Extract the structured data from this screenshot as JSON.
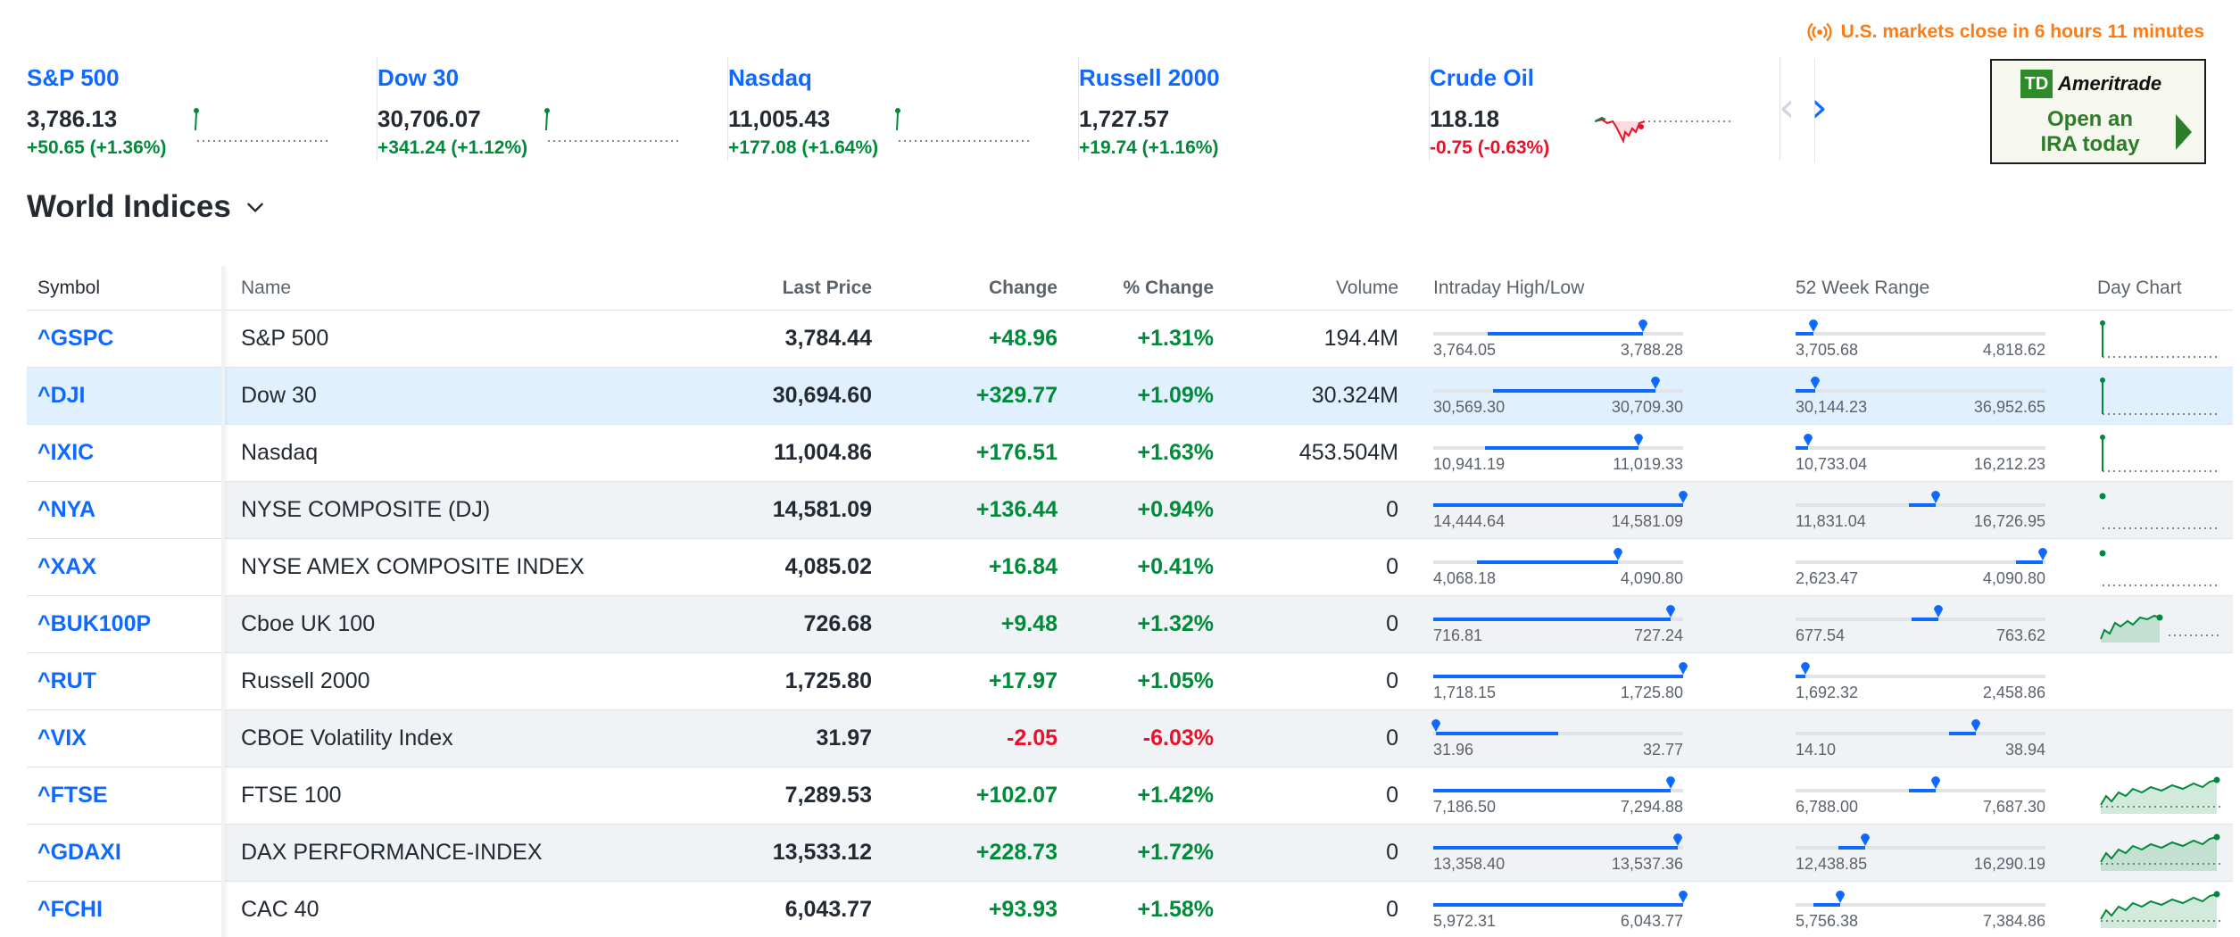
{
  "market_status": "U.S. markets close in 6 hours 11 minutes",
  "tickers": [
    {
      "name": "S&P 500",
      "price": "3,786.13",
      "change": "+50.65 (+1.36%)",
      "trend": "pos"
    },
    {
      "name": "Dow 30",
      "price": "30,706.07",
      "change": "+341.24 (+1.12%)",
      "trend": "pos"
    },
    {
      "name": "Nasdaq",
      "price": "11,005.43",
      "change": "+177.08 (+1.64%)",
      "trend": "pos"
    },
    {
      "name": "Russell 2000",
      "price": "1,727.57",
      "change": "+19.74 (+1.16%)",
      "trend": "pos"
    },
    {
      "name": "Crude Oil",
      "price": "118.18",
      "change": "-0.75 (-0.63%)",
      "trend": "neg"
    }
  ],
  "ad": {
    "brand": "Ameritrade",
    "logo": "TD",
    "text_line1": "Open an",
    "text_line2": "IRA today"
  },
  "section_title": "World Indices",
  "table": {
    "headers": {
      "symbol": "Symbol",
      "name": "Name",
      "last": "Last Price",
      "change": "Change",
      "pct": "% Change",
      "volume": "Volume",
      "intraday": "Intraday High/Low",
      "week52": "52 Week Range",
      "day": "Day Chart"
    },
    "rows": [
      {
        "symbol": "^GSPC",
        "name": "S&P 500",
        "last": "3,784.44",
        "change": "+48.96",
        "pct": "+1.31%",
        "volume": "194.4M",
        "intra_lo": "3,764.05",
        "intra_hi": "3,788.28",
        "w52_lo": "3,705.68",
        "w52_hi": "4,818.62",
        "intra_pos": 0.84,
        "w52_pos": 0.07,
        "trend": "pos",
        "day_style": "pin"
      },
      {
        "symbol": "^DJI",
        "name": "Dow 30",
        "last": "30,694.60",
        "change": "+329.77",
        "pct": "+1.09%",
        "volume": "30.324M",
        "intra_lo": "30,569.30",
        "intra_hi": "30,709.30",
        "w52_lo": "30,144.23",
        "w52_hi": "36,952.65",
        "intra_pos": 0.89,
        "w52_pos": 0.08,
        "trend": "pos",
        "day_style": "pin"
      },
      {
        "symbol": "^IXIC",
        "name": "Nasdaq",
        "last": "11,004.86",
        "change": "+176.51",
        "pct": "+1.63%",
        "volume": "453.504M",
        "intra_lo": "10,941.19",
        "intra_hi": "11,019.33",
        "w52_lo": "10,733.04",
        "w52_hi": "16,212.23",
        "intra_pos": 0.82,
        "w52_pos": 0.05,
        "trend": "pos",
        "day_style": "pin"
      },
      {
        "symbol": "^NYA",
        "name": "NYSE COMPOSITE (DJ)",
        "last": "14,581.09",
        "change": "+136.44",
        "pct": "+0.94%",
        "volume": "0",
        "intra_lo": "14,444.64",
        "intra_hi": "14,581.09",
        "w52_lo": "11,831.04",
        "w52_hi": "16,726.95",
        "intra_pos": 1.0,
        "w52_pos": 0.56,
        "trend": "pos",
        "day_style": "dot"
      },
      {
        "symbol": "^XAX",
        "name": "NYSE AMEX COMPOSITE INDEX",
        "last": "4,085.02",
        "change": "+16.84",
        "pct": "+0.41%",
        "volume": "0",
        "intra_lo": "4,068.18",
        "intra_hi": "4,090.80",
        "w52_lo": "2,623.47",
        "w52_hi": "4,090.80",
        "intra_pos": 0.74,
        "w52_pos": 0.99,
        "trend": "pos",
        "day_style": "dot"
      },
      {
        "symbol": "^BUK100P",
        "name": "Cboe UK 100",
        "last": "726.68",
        "change": "+9.48",
        "pct": "+1.32%",
        "volume": "0",
        "intra_lo": "716.81",
        "intra_hi": "727.24",
        "w52_lo": "677.54",
        "w52_hi": "763.62",
        "intra_pos": 0.95,
        "w52_pos": 0.57,
        "trend": "pos",
        "day_style": "short"
      },
      {
        "symbol": "^RUT",
        "name": "Russell 2000",
        "last": "1,725.80",
        "change": "+17.97",
        "pct": "+1.05%",
        "volume": "0",
        "intra_lo": "1,718.15",
        "intra_hi": "1,725.80",
        "w52_lo": "1,692.32",
        "w52_hi": "2,458.86",
        "intra_pos": 1.0,
        "w52_pos": 0.04,
        "trend": "pos",
        "day_style": "none"
      },
      {
        "symbol": "^VIX",
        "name": "CBOE Volatility Index",
        "last": "31.97",
        "change": "-2.05",
        "pct": "-6.03%",
        "volume": "0",
        "intra_lo": "31.96",
        "intra_hi": "32.77",
        "w52_lo": "14.10",
        "w52_hi": "38.94",
        "intra_pos": 0.01,
        "w52_pos": 0.72,
        "trend": "neg",
        "day_style": "none"
      },
      {
        "symbol": "^FTSE",
        "name": "FTSE 100",
        "last": "7,289.53",
        "change": "+102.07",
        "pct": "+1.42%",
        "volume": "0",
        "intra_lo": "7,186.50",
        "intra_hi": "7,294.88",
        "w52_lo": "6,788.00",
        "w52_hi": "7,687.30",
        "intra_pos": 0.95,
        "w52_pos": 0.56,
        "trend": "pos",
        "day_style": "full"
      },
      {
        "symbol": "^GDAXI",
        "name": "DAX PERFORMANCE-INDEX",
        "last": "13,533.12",
        "change": "+228.73",
        "pct": "+1.72%",
        "volume": "0",
        "intra_lo": "13,358.40",
        "intra_hi": "13,537.36",
        "w52_lo": "12,438.85",
        "w52_hi": "16,290.19",
        "intra_pos": 0.98,
        "w52_pos": 0.28,
        "trend": "pos",
        "day_style": "full"
      },
      {
        "symbol": "^FCHI",
        "name": "CAC 40",
        "last": "6,043.77",
        "change": "+93.93",
        "pct": "+1.58%",
        "volume": "0",
        "intra_lo": "5,972.31",
        "intra_hi": "6,043.77",
        "w52_lo": "5,756.38",
        "w52_hi": "7,384.86",
        "intra_pos": 1.0,
        "w52_pos": 0.18,
        "trend": "pos",
        "day_style": "full"
      }
    ]
  },
  "colors": {
    "accent": "#0f69ff",
    "positive": "#008a3a",
    "negative": "#eb0f29",
    "status": "#ff7b12"
  }
}
